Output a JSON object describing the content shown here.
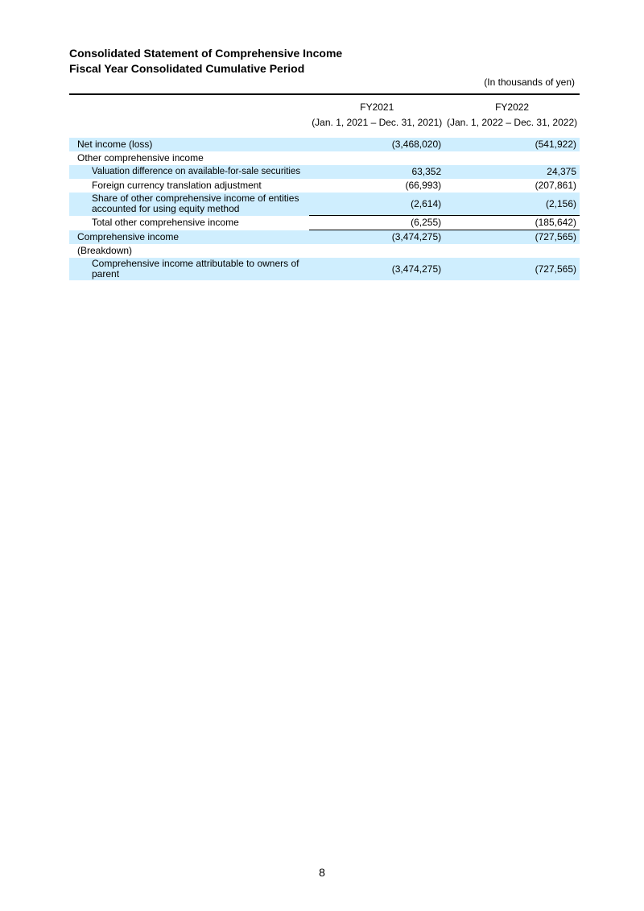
{
  "title_lines": [
    "Consolidated Statement of Comprehensive Income",
    "Fiscal Year Consolidated Cumulative Period"
  ],
  "unit_note": "(In thousands of yen)",
  "columns": [
    {
      "label": "FY2021",
      "period": "(Jan. 1, 2021 – Dec. 31, 2021)"
    },
    {
      "label": "FY2022",
      "period": "(Jan. 1, 2022 – Dec. 31, 2022)"
    }
  ],
  "rows": [
    {
      "label": "Net income (loss)",
      "v1": "(3,468,020)",
      "v2": "(541,922)"
    },
    {
      "label": "Other comprehensive income",
      "v1": "",
      "v2": ""
    },
    {
      "label": "Valuation difference on available-for-sale securities",
      "v1": "63,352",
      "v2": "24,375"
    },
    {
      "label": "Foreign currency translation adjustment",
      "v1": "(66,993)",
      "v2": "(207,861)"
    },
    {
      "label": "Share of other comprehensive income of entities accounted for using equity method",
      "v1": "(2,614)",
      "v2": "(2,156)"
    },
    {
      "label": "Total other comprehensive income",
      "v1": "(6,255)",
      "v2": "(185,642)"
    },
    {
      "label": "Comprehensive income",
      "v1": "(3,474,275)",
      "v2": "(727,565)"
    },
    {
      "label": "(Breakdown)",
      "v1": "",
      "v2": ""
    },
    {
      "label": "Comprehensive income attributable to owners of parent",
      "v1": "(3,474,275)",
      "v2": "(727,565)"
    }
  ],
  "page_number": "8",
  "colors": {
    "row_shade": "#cfeefe"
  }
}
